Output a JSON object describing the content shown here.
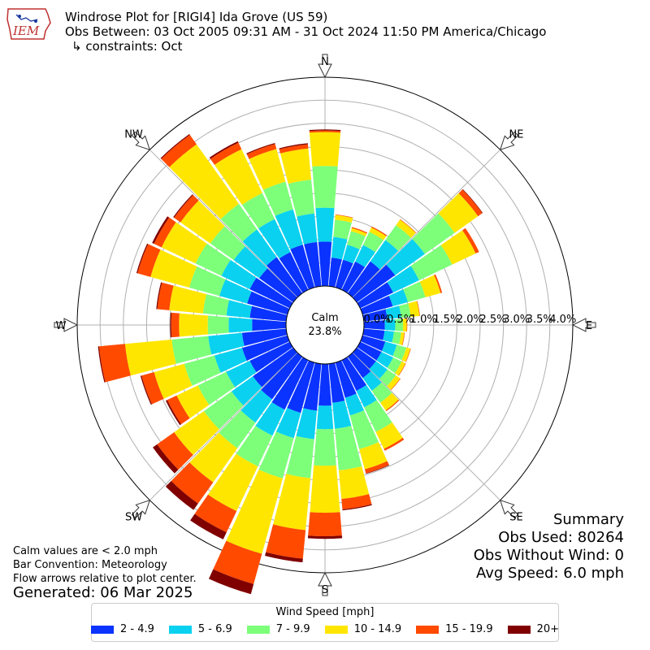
{
  "header": {
    "title": "Windrose Plot for [RIGI4] Ida Grove (US 59)",
    "obs_between": "Obs Between: 03 Oct 2005 09:31 AM - 31 Oct 2024 11:50 PM America/Chicago",
    "constraints": "↳ constraints: Oct"
  },
  "logo": {
    "text": "IEM",
    "icon": "iowa-state-outline-icon"
  },
  "notes": {
    "calm_note": "Calm values are < 2.0 mph",
    "bar_convention": "Bar Convention: Meteorology",
    "flow_arrows": "Flow arrows relative to plot center.",
    "generated": "Generated: 06 Mar 2025"
  },
  "summary": {
    "title": "Summary",
    "obs_used": "Obs Used: 80264",
    "obs_without_wind": "Obs Without Wind: 0",
    "avg_speed": "Avg Speed: 6.0 mph"
  },
  "chart_data": {
    "type": "windrose",
    "calm_label": "Calm",
    "calm_value": "23.8%",
    "radial_tick_labels": [
      "0.0%",
      "0.5%",
      "1.0%",
      "1.5%",
      "2.0%",
      "2.5%",
      "3.0%",
      "3.5%",
      "4.0%"
    ],
    "radial_max": 4.0,
    "compass_labels": [
      "N",
      "NE",
      "E",
      "SE",
      "S",
      "SW",
      "W",
      "NW"
    ],
    "legend_title": "Wind Speed [mph]",
    "speed_bins": [
      {
        "label": "2 - 4.9",
        "color": "#0a33ff"
      },
      {
        "label": "5 - 6.9",
        "color": "#0ad1f0"
      },
      {
        "label": "7 - 9.9",
        "color": "#7dff7a"
      },
      {
        "label": "10 - 14.9",
        "color": "#ffe600"
      },
      {
        "label": "15 - 19.9",
        "color": "#ff4a00"
      },
      {
        "label": "20+",
        "color": "#800000"
      }
    ],
    "directions_deg": [
      0,
      10,
      20,
      30,
      40,
      50,
      60,
      70,
      80,
      90,
      100,
      110,
      120,
      130,
      140,
      150,
      160,
      170,
      180,
      190,
      200,
      210,
      220,
      230,
      240,
      250,
      260,
      270,
      280,
      290,
      300,
      310,
      320,
      330,
      340,
      350
    ],
    "cumulative_pct": [
      [
        0.85,
        1.5,
        2.3,
        2.95,
        2.98,
        3.0
      ],
      [
        0.55,
        0.95,
        1.28,
        1.37,
        1.38,
        1.38
      ],
      [
        0.55,
        0.85,
        1.12,
        1.18,
        1.2,
        1.2
      ],
      [
        0.6,
        0.95,
        1.23,
        1.32,
        1.34,
        1.34
      ],
      [
        0.75,
        1.25,
        1.6,
        1.73,
        1.74,
        1.74
      ],
      [
        0.9,
        1.6,
        2.3,
        2.85,
        2.95,
        2.96
      ],
      [
        0.7,
        1.25,
        1.95,
        2.45,
        2.52,
        2.52
      ],
      [
        0.6,
        0.9,
        1.25,
        1.55,
        1.58,
        1.58
      ],
      [
        0.45,
        0.72,
        0.9,
        1.07,
        1.08,
        1.08
      ],
      [
        0.4,
        0.6,
        0.75,
        0.82,
        0.83,
        0.83
      ],
      [
        0.4,
        0.58,
        0.72,
        0.78,
        0.79,
        0.79
      ],
      [
        0.45,
        0.68,
        0.87,
        0.95,
        0.96,
        0.96
      ],
      [
        0.45,
        0.7,
        0.88,
        0.96,
        0.97,
        0.97
      ],
      [
        0.45,
        0.72,
        0.92,
        1.02,
        1.03,
        1.03
      ],
      [
        0.5,
        0.8,
        1.08,
        1.26,
        1.28,
        1.28
      ],
      [
        0.65,
        1.0,
        1.52,
        1.88,
        1.92,
        1.92
      ],
      [
        0.7,
        1.05,
        1.72,
        2.12,
        2.2,
        2.21
      ],
      [
        0.75,
        1.25,
        2.05,
        2.6,
        2.8,
        2.82
      ],
      [
        0.8,
        1.25,
        1.95,
        2.85,
        3.3,
        3.35
      ],
      [
        0.9,
        1.45,
        2.2,
        3.2,
        3.75,
        3.82
      ],
      [
        1.0,
        1.5,
        2.3,
        3.8,
        4.4,
        4.6
      ],
      [
        1.05,
        1.6,
        2.25,
        3.2,
        3.65,
        3.8
      ],
      [
        1.0,
        1.55,
        2.15,
        2.95,
        3.45,
        3.6
      ],
      [
        0.95,
        1.45,
        2.1,
        2.8,
        3.2,
        3.3
      ],
      [
        0.85,
        1.35,
        1.95,
        2.4,
        2.6,
        2.63
      ],
      [
        0.9,
        1.45,
        2.05,
        2.65,
        2.9,
        2.92
      ],
      [
        0.85,
        1.5,
        2.2,
        3.1,
        3.6,
        3.62
      ],
      [
        0.65,
        1.1,
        1.5,
        2.05,
        2.2,
        2.22
      ],
      [
        0.7,
        1.15,
        1.6,
        2.25,
        2.48,
        2.5
      ],
      [
        0.8,
        1.35,
        1.95,
        2.72,
        2.98,
        3.0
      ],
      [
        0.85,
        1.45,
        2.0,
        2.72,
        2.88,
        2.92
      ],
      [
        0.8,
        1.4,
        1.95,
        2.65,
        2.8,
        2.82
      ],
      [
        0.85,
        1.5,
        2.1,
        3.5,
        3.72,
        3.74
      ],
      [
        0.8,
        1.5,
        2.05,
        2.98,
        3.12,
        3.15
      ],
      [
        0.85,
        1.55,
        2.1,
        2.75,
        2.85,
        2.87
      ],
      [
        0.85,
        1.4,
        2.05,
        2.65,
        2.73,
        2.75
      ]
    ]
  }
}
